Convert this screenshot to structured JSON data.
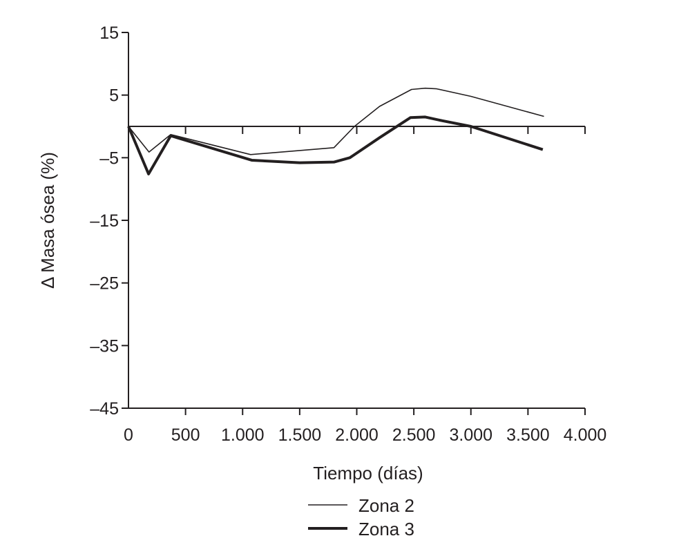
{
  "chart_data": {
    "type": "line",
    "title": "",
    "xlabel": "Tiempo (días)",
    "ylabel": "Δ Masa ósea (%)",
    "xlim": [
      0,
      4000
    ],
    "ylim": [
      -45,
      15
    ],
    "xticks": [
      0,
      500,
      1000,
      1500,
      2000,
      2500,
      3000,
      3500,
      4000
    ],
    "xtick_labels": [
      "0",
      "500",
      "1.000",
      "1.500",
      "2.000",
      "2.500",
      "3.000",
      "3.500",
      "4.000"
    ],
    "yticks": [
      15,
      5,
      -5,
      -15,
      -25,
      -35,
      -45
    ],
    "ytick_labels": [
      "15",
      "5",
      "–5",
      "–15",
      "–25",
      "–35",
      "–45"
    ],
    "grid": false,
    "legend_position": "bottom",
    "series": [
      {
        "name": "Zona 2",
        "style": "thin",
        "color": "#231f20",
        "x": [
          0,
          180,
          370,
          1070,
          1800,
          1980,
          2200,
          2480,
          2600,
          2700,
          3000,
          3640
        ],
        "y": [
          0,
          -4.1,
          -1.3,
          -4.5,
          -3.4,
          0,
          3.2,
          5.9,
          6.1,
          6.0,
          4.8,
          1.6
        ]
      },
      {
        "name": "Zona 3",
        "style": "thick",
        "color": "#231f20",
        "x": [
          0,
          176,
          370,
          1080,
          1500,
          1800,
          1940,
          2200,
          2470,
          2600,
          2750,
          3000,
          3630
        ],
        "y": [
          0,
          -7.6,
          -1.5,
          -5.4,
          -5.8,
          -5.7,
          -5.0,
          -1.8,
          1.4,
          1.5,
          0.9,
          0,
          -3.7
        ]
      }
    ]
  }
}
